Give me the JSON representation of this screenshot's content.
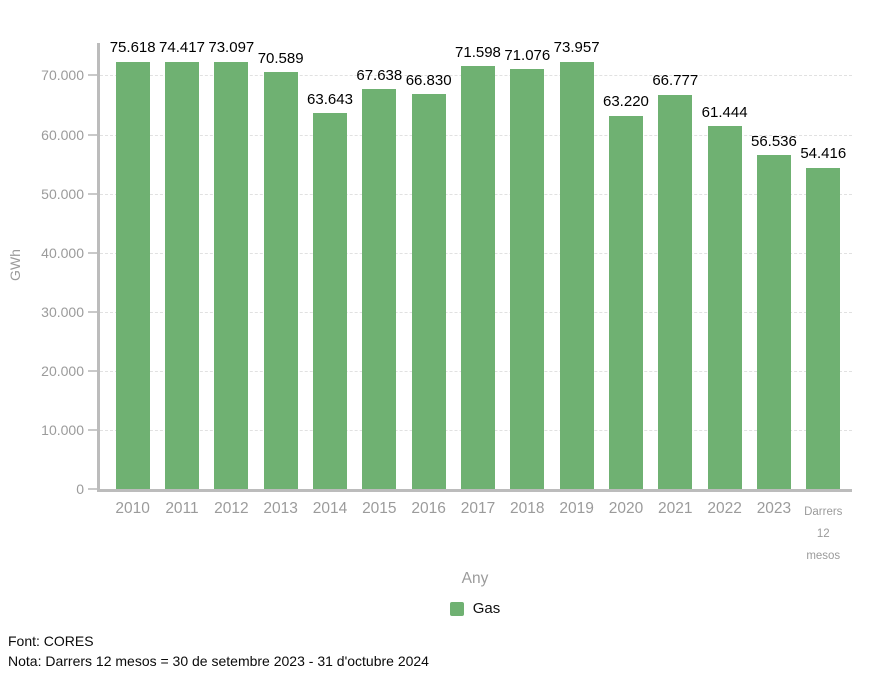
{
  "chart_data": {
    "type": "bar",
    "title": "",
    "categories": [
      "2010",
      "2011",
      "2012",
      "2013",
      "2014",
      "2015",
      "2016",
      "2017",
      "2018",
      "2019",
      "2020",
      "2021",
      "2022",
      "2023",
      "Darrers 12 mesos"
    ],
    "values": [
      75618,
      74417,
      73097,
      70589,
      63643,
      67638,
      66830,
      71598,
      71076,
      73957,
      63220,
      66777,
      61444,
      56536,
      54416
    ],
    "value_labels": [
      "75.618",
      "74.417",
      "73.097",
      "70.589",
      "63.643",
      "67.638",
      "66.830",
      "71.598",
      "71.076",
      "73.957",
      "63.220",
      "66.777",
      "61.444",
      "56.536",
      "54.416"
    ],
    "xlabel": "Any",
    "ylabel": "GWh",
    "ylim": [
      0,
      76000
    ],
    "yticks": [
      0,
      10000,
      20000,
      30000,
      40000,
      50000,
      60000,
      70000
    ],
    "ytick_labels": [
      "0",
      "10.000",
      "20.000",
      "30.000",
      "40.000",
      "50.000",
      "60.000",
      "70.000"
    ],
    "grid": true,
    "legend_position": "bottom",
    "legend": [
      {
        "label": "Gas",
        "color": "#6fb172"
      }
    ]
  },
  "colors": {
    "bar": "#6fb172",
    "axis_line": "#bcbcbc",
    "gridline": "#e1e1e1",
    "axis_text": "#9b9b9b",
    "value_text": "#000000"
  },
  "footer": {
    "line1": "Font: CORES",
    "line2": "Nota: Darrers 12 mesos = 30 de setembre 2023 - 31 d'octubre 2024"
  }
}
